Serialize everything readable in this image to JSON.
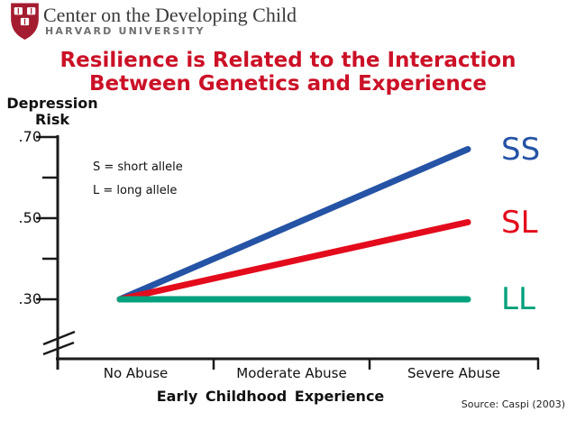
{
  "header": {
    "org_name": "Center on the Developing Child",
    "university": "HARVARD UNIVERSITY",
    "logo_color": "#A41C30"
  },
  "title": {
    "line1": "Resilience is Related to the Interaction",
    "line2": "Between Genetics and Experience",
    "color": "#CB1127"
  },
  "legend": {
    "line1": "S = short allele",
    "line2": "L = long allele"
  },
  "source": "Source: Caspi (2003)",
  "chart_data": {
    "type": "line",
    "title": "Resilience is Related to the Interaction Between Genetics and Experience",
    "ylabel": "Depression Risk",
    "xlabel": "Early Childhood Experience",
    "categories": [
      "No Abuse",
      "Moderate Abuse",
      "Severe Abuse"
    ],
    "ylim": [
      0.3,
      0.7
    ],
    "grid": false,
    "axis_break_on_y": true,
    "legend_position": "right of line ends",
    "yticks": [
      {
        "value": 0.7,
        "label": ".70"
      },
      {
        "value": 0.6,
        "label": ""
      },
      {
        "value": 0.5,
        "label": ".50"
      },
      {
        "value": 0.4,
        "label": ""
      },
      {
        "value": 0.3,
        "label": ".30"
      }
    ],
    "series": [
      {
        "name": "SS",
        "color": "#2553A5",
        "x": [
          "No Abuse",
          "Severe Abuse"
        ],
        "values": [
          0.3,
          0.67
        ]
      },
      {
        "name": "SL",
        "color": "#E30B1C",
        "x": [
          "No Abuse",
          "Severe Abuse"
        ],
        "values": [
          0.3,
          0.49
        ]
      },
      {
        "name": "LL",
        "color": "#00A17C",
        "x": [
          "No Abuse",
          "Severe Abuse"
        ],
        "values": [
          0.3,
          0.3
        ]
      }
    ]
  }
}
